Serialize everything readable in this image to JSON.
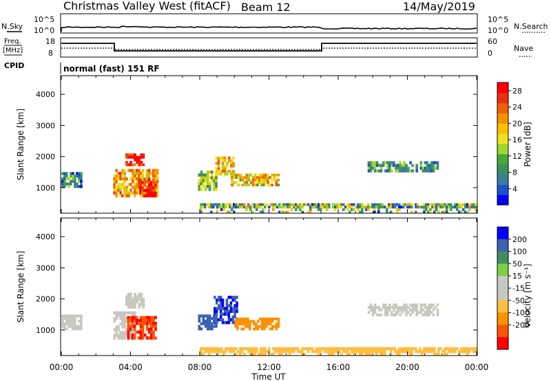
{
  "header": {
    "title": "Christmas Valley West (fitACF)",
    "beam": "Beam 12",
    "date": "14/May/2019"
  },
  "top_panels": {
    "nsky_label": "N.Sky",
    "nsearch_label": "N.Search",
    "noise_ticks": [
      "10^5",
      "10^0"
    ],
    "freq_label_line1": "Freq.",
    "freq_label_line2": "[MHz]",
    "freq_ticks": [
      "18",
      "8"
    ],
    "nave_label": "Nave",
    "nave_ticks": [
      "60",
      "0"
    ],
    "cpid_label": "CPID",
    "cpid_text": "normal (fast) 151 RF"
  },
  "colors": {
    "power": [
      "#0000ff",
      "#2050d0",
      "#3b7d9c",
      "#3f8f5e",
      "#44a83a",
      "#9ed82a",
      "#f0e020",
      "#f8c000",
      "#f59000",
      "#f06000",
      "#e83010",
      "#ff0000"
    ],
    "velocity": [
      "#ff0000",
      "#ff5500",
      "#ff9000",
      "#ffbe40",
      "#c8c8c0",
      "#c8c8c0",
      "#7ed040",
      "#3f8f5e",
      "#3c62b0",
      "#0000ff"
    ]
  },
  "chart_data": [
    {
      "type": "heatmap",
      "name": "power",
      "xlabel": "",
      "ylabel": "Slant Range [km]",
      "xlim": [
        "00:00",
        "24:00"
      ],
      "ylim": [
        180,
        4600
      ],
      "yticks": [
        1000,
        2000,
        3000,
        4000
      ],
      "colorbar_label": "Power [dB]",
      "colorbar_ticks": [
        "4",
        "8",
        "12",
        "16",
        "20",
        "24",
        "28"
      ],
      "colorbar_range": [
        0,
        30
      ],
      "regions": [
        {
          "t0": 3.0,
          "t1": 5.6,
          "r0": 700,
          "r1": 1600,
          "value": 20
        },
        {
          "t0": 3.7,
          "t1": 4.8,
          "r0": 1700,
          "r1": 2100,
          "value": 28
        },
        {
          "t0": 4.5,
          "t1": 5.5,
          "r0": 700,
          "r1": 1300,
          "value": 28
        },
        {
          "t0": 0.0,
          "t1": 1.2,
          "r0": 1000,
          "r1": 1500,
          "value": 8
        },
        {
          "t0": 7.9,
          "t1": 9.0,
          "r0": 900,
          "r1": 1550,
          "value": 14
        },
        {
          "t0": 8.9,
          "t1": 10.0,
          "r0": 1400,
          "r1": 2000,
          "value": 18
        },
        {
          "t0": 9.8,
          "t1": 12.6,
          "r0": 1050,
          "r1": 1450,
          "value": 18
        },
        {
          "t0": 17.7,
          "t1": 21.8,
          "r0": 1500,
          "r1": 1850,
          "value": 9
        },
        {
          "t0": 8.0,
          "t1": 24.0,
          "r0": 180,
          "r1": 500,
          "value": 12
        }
      ]
    },
    {
      "type": "heatmap",
      "name": "velocity",
      "xlabel": "Time UT",
      "ylabel": "Slant Range [km]",
      "xticks": [
        "00:00",
        "04:00",
        "08:00",
        "12:00",
        "16:00",
        "20:00",
        "00:00"
      ],
      "xlim": [
        "00:00",
        "24:00"
      ],
      "ylim": [
        180,
        4600
      ],
      "yticks": [
        1000,
        2000,
        3000,
        4000
      ],
      "colorbar_label": "Velocity [m s⁻¹]",
      "colorbar_ticks": [
        "200",
        "100",
        "50",
        "15",
        "-15",
        "-50",
        "-100",
        "-200"
      ],
      "regions": [
        {
          "t0": 3.0,
          "t1": 4.3,
          "r0": 700,
          "r1": 1600,
          "value": 0
        },
        {
          "t0": 3.7,
          "t1": 4.8,
          "r0": 1700,
          "r1": 2200,
          "value": 0
        },
        {
          "t0": 3.8,
          "t1": 5.5,
          "r0": 700,
          "r1": 1450,
          "value": -200
        },
        {
          "t0": 0.0,
          "t1": 1.2,
          "r0": 1000,
          "r1": 1500,
          "value": 0
        },
        {
          "t0": 8.8,
          "t1": 10.2,
          "r0": 1200,
          "r1": 2100,
          "value": 200
        },
        {
          "t0": 7.9,
          "t1": 9.0,
          "r0": 1000,
          "r1": 1500,
          "value": 150
        },
        {
          "t0": 10.0,
          "t1": 12.6,
          "r0": 1000,
          "r1": 1400,
          "value": -70
        },
        {
          "t0": 17.7,
          "t1": 21.8,
          "r0": 1450,
          "r1": 1850,
          "value": 0
        },
        {
          "t0": 8.0,
          "t1": 24.0,
          "r0": 180,
          "r1": 450,
          "value": -30
        }
      ]
    }
  ]
}
